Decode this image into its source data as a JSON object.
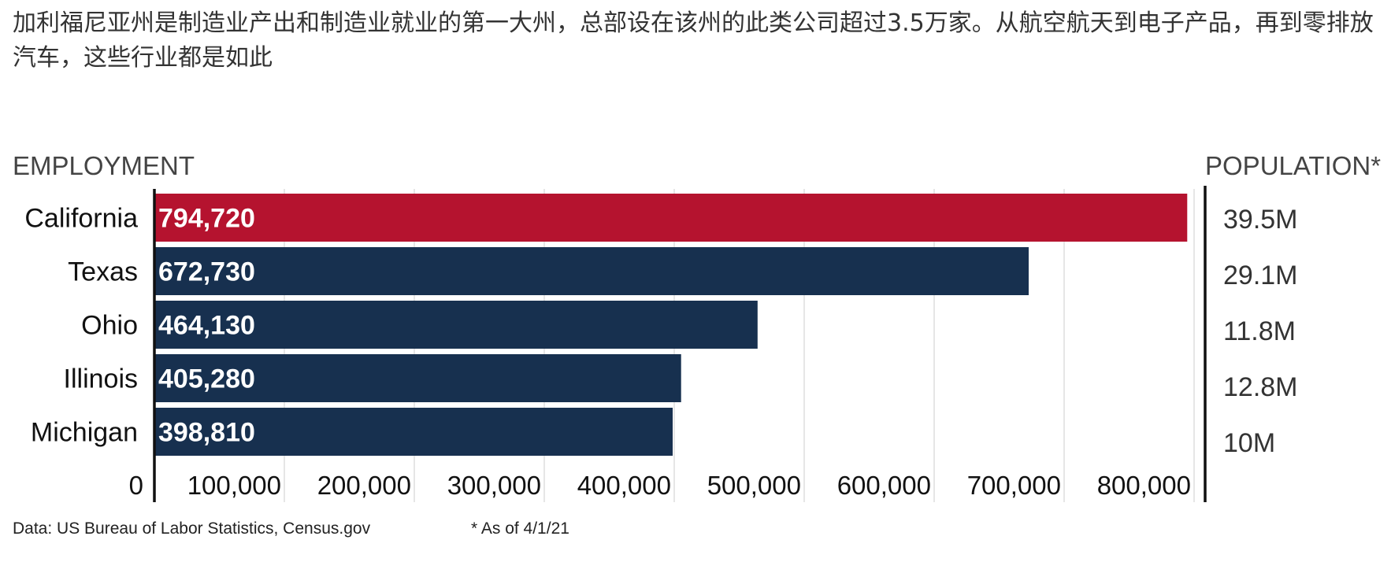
{
  "headline": "加利福尼亚州是制造业产出和制造业就业的第一大州，总部设在该州的此类公司超过3.5万家。从航空航天到电子产品，再到零排放汽车，这些行业都是如此",
  "chart_data": {
    "type": "bar",
    "orientation": "horizontal",
    "left_header": "EMPLOYMENT",
    "right_header": "POPULATION*",
    "categories": [
      "California",
      "Texas",
      "Ohio",
      "Illinois",
      "Michigan"
    ],
    "values": [
      794720,
      672730,
      464130,
      405280,
      398810
    ],
    "value_labels": [
      "794,720",
      "672,730",
      "464,130",
      "405,280",
      "398,810"
    ],
    "population_labels": [
      "39.5M",
      "29.1M",
      "11.8M",
      "12.8M",
      "10M"
    ],
    "xlim": [
      0,
      800000
    ],
    "x_ticks": [
      0,
      100000,
      200000,
      300000,
      400000,
      500000,
      600000,
      700000,
      800000
    ],
    "x_tick_labels": [
      "0",
      "100,000",
      "200,000",
      "300,000",
      "400,000",
      "500,000",
      "600,000",
      "700,000",
      "800,000"
    ],
    "grid": true,
    "highlight_category": "California",
    "colors": {
      "highlight": "#b5132f",
      "default": "#17304f",
      "grid": "#dddddd",
      "axis": "#111111"
    }
  },
  "footer": {
    "source": "Data: US Bureau of Labor Statistics, Census.gov",
    "note": "* As of 4/1/21"
  }
}
